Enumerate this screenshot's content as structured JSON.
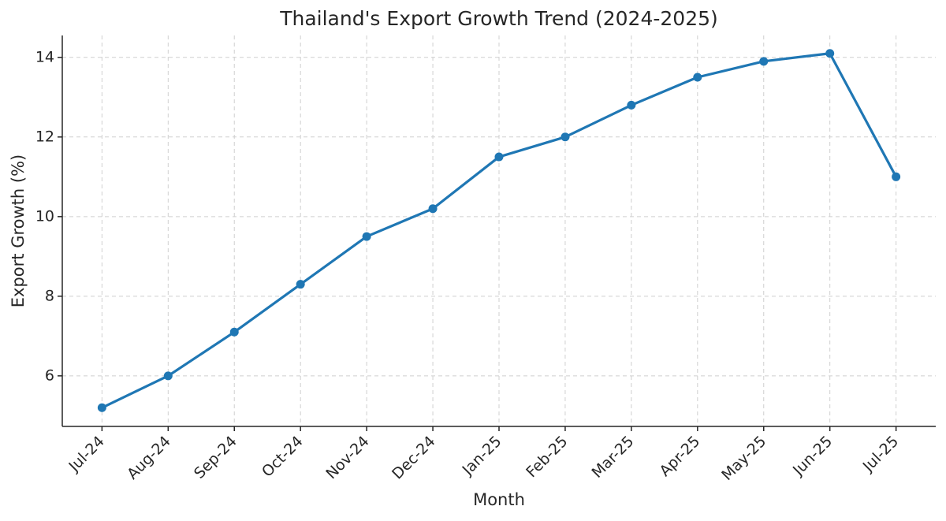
{
  "chart_data": {
    "type": "line",
    "title": "Thailand's Export Growth Trend (2024-2025)",
    "x_label": "Month",
    "y_label": "Export Growth (%)",
    "categories": [
      "Jul-24",
      "Aug-24",
      "Sep-24",
      "Oct-24",
      "Nov-24",
      "Dec-24",
      "Jan-25",
      "Feb-25",
      "Mar-25",
      "Apr-25",
      "May-25",
      "Jun-25",
      "Jul-25"
    ],
    "values": [
      5.2,
      6.0,
      7.1,
      8.3,
      9.5,
      10.2,
      11.5,
      12.0,
      12.8,
      13.5,
      13.9,
      14.1,
      11.0
    ],
    "color": "#1f77b4",
    "ylim": [
      4.73,
      14.55
    ],
    "yticks": [
      6,
      8,
      10,
      12,
      14
    ],
    "grid": true
  }
}
